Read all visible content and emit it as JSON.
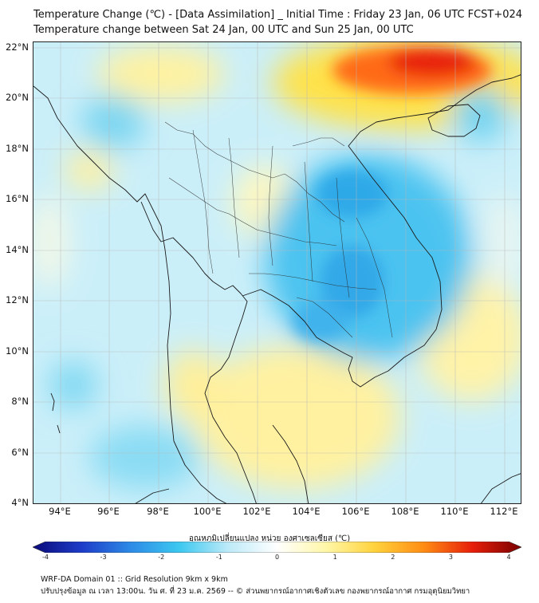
{
  "title_line1": "Temperature Change (℃) - [Data Assimilation] _ Initial Time : Friday 23 Jan, 06 UTC FCST+024",
  "title_line2": "Temperature change between Sat 24 Jan, 00 UTC and Sun 25 Jan, 00 UTC",
  "lat_labels": [
    "22°N",
    "20°N",
    "18°N",
    "16°N",
    "14°N",
    "12°N",
    "10°N",
    "8°N",
    "6°N",
    "4°N"
  ],
  "lon_labels": [
    "94°E",
    "96°E",
    "98°E",
    "100°E",
    "102°E",
    "104°E",
    "106°E",
    "108°E",
    "110°E",
    "112°E"
  ],
  "colorbar": {
    "title": "อุณหภูมิเปลี่ยนแปลง หน่วย องศาเซลเซียส (℃)",
    "ticks": [
      "-4",
      "-3",
      "-2",
      "-1",
      "0",
      "1",
      "2",
      "3",
      "4"
    ],
    "min": -4,
    "max": 4,
    "colors": [
      "#0a0a7a",
      "#1e3cc8",
      "#2d8ae6",
      "#3cc8f0",
      "#bdeaf8",
      "#ffffff",
      "#fff7a8",
      "#ffd23c",
      "#ff8c14",
      "#e61e0a",
      "#780000"
    ]
  },
  "footer_line1": "WRF-DA Domain 01 :: Grid Resolution 9km x 9km",
  "footer_line2": "ปรับปรุงข้อมูล ณ เวลา 13:00น. วัน ศ. ที่ 23 ม.ค. 2569 -- © ส่วนพยากรณ์อากาศเชิงตัวเลข กองพยากรณ์อากาศ กรมอุตุนิยมวิทยา",
  "map_extent": {
    "lon": [
      93,
      112.5
    ],
    "lat": [
      4,
      22.2
    ]
  }
}
